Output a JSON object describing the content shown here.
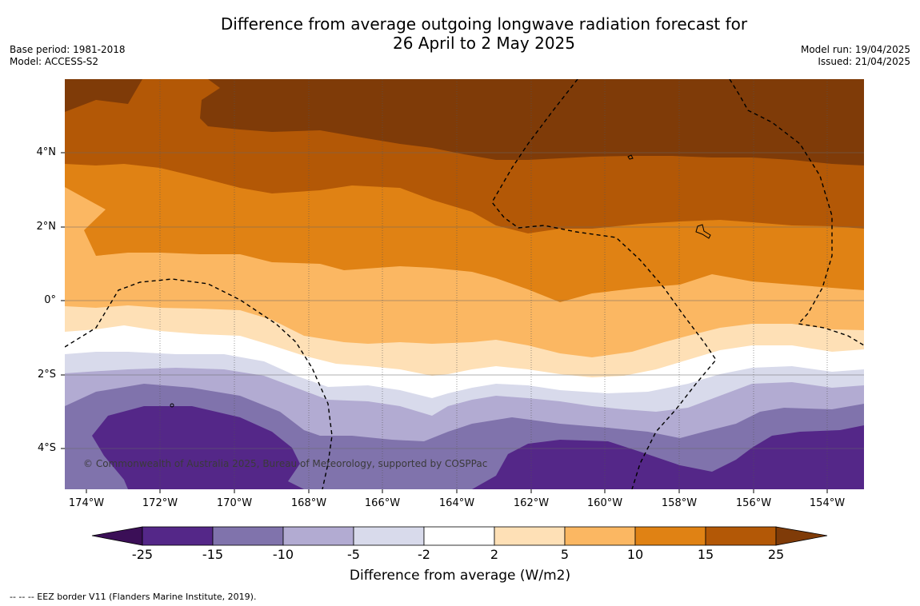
{
  "title": {
    "line1": "Difference from average outgoing longwave radiation forecast for",
    "line2": "26 April to 2 May 2025"
  },
  "meta_left": {
    "base_period": "Base period: 1981-2018",
    "model": "Model: ACCESS-S2"
  },
  "meta_right": {
    "model_run": "Model run: 19/04/2025",
    "issued": "Issued: 21/04/2025"
  },
  "copyright": "© Commonwealth of Australia 2025, Bureau of Meteorology, supported by COSPPac",
  "lat_labels": [
    "4°N",
    "2°N",
    "0°",
    "2°S",
    "4°S"
  ],
  "lon_labels": [
    "174°W",
    "172°W",
    "170°W",
    "168°W",
    "166°W",
    "164°W",
    "162°W",
    "160°W",
    "158°W",
    "156°W",
    "154°W"
  ],
  "colorbar": {
    "ticks": [
      "-25",
      "-15",
      "-10",
      "-5",
      "-2",
      "2",
      "5",
      "10",
      "15",
      "25"
    ],
    "label": "Difference from average (W/m2)",
    "colors": {
      "below_min": "#3b0f57",
      "n25_n15": "#542788",
      "n15_n10": "#8073ac",
      "n10_n5": "#b2abd2",
      "n5_n2": "#d8daeb",
      "n2_2": "#ffffff",
      "p2_5": "#fee0b6",
      "p5_10": "#fbb762",
      "p10_15": "#e08214",
      "p15_25": "#b35806",
      "above_max": "#7f3b08"
    }
  },
  "footnote": "--  --  -- EEZ border V11 (Flanders Marine Institute, 2019)."
}
